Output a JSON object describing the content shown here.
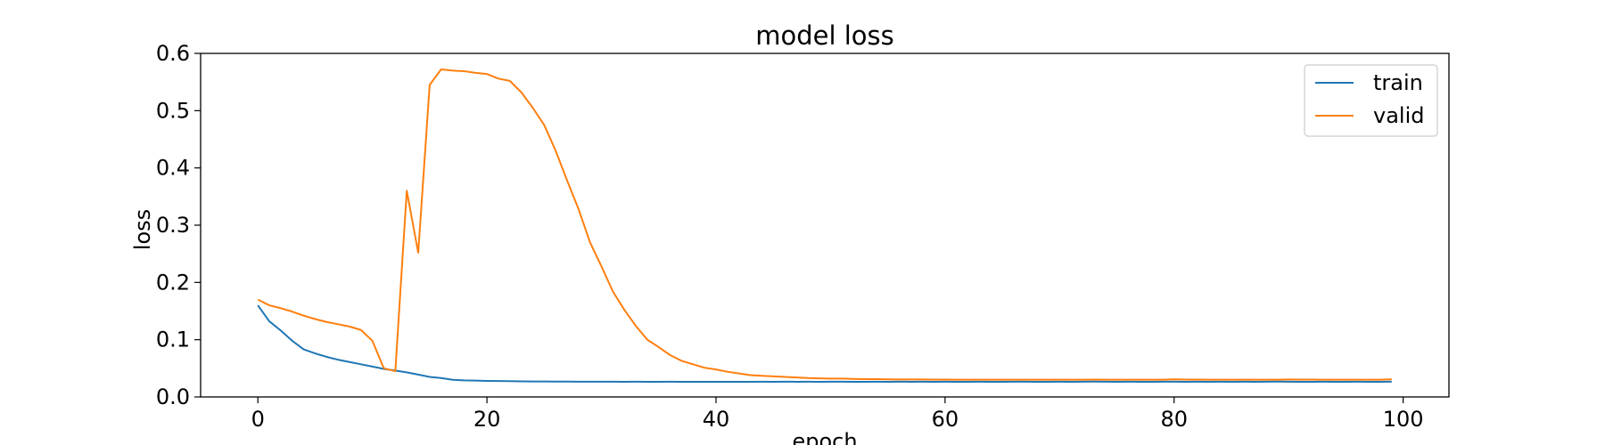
{
  "chart_data": {
    "type": "line",
    "title": "model loss",
    "xlabel": "epoch",
    "ylabel": "loss",
    "xlim": [
      -5,
      104
    ],
    "ylim": [
      0.0,
      0.6
    ],
    "xticks": [
      0,
      20,
      40,
      60,
      80,
      100
    ],
    "yticks": [
      0.0,
      0.1,
      0.2,
      0.3,
      0.4,
      0.5,
      0.6
    ],
    "xtick_labels": [
      "0",
      "20",
      "40",
      "60",
      "80",
      "100"
    ],
    "ytick_labels": [
      "0.0",
      "0.1",
      "0.2",
      "0.3",
      "0.4",
      "0.5",
      "0.6"
    ],
    "grid": false,
    "legend_position": "top-right",
    "series": [
      {
        "name": "train",
        "color": "#1f77b4",
        "x": [
          0,
          1,
          2,
          3,
          4,
          5,
          6,
          7,
          8,
          9,
          10,
          11,
          12,
          13,
          14,
          15,
          16,
          17,
          18,
          19,
          20,
          21,
          22,
          23,
          24,
          25,
          26,
          27,
          28,
          29,
          30,
          31,
          32,
          33,
          34,
          35,
          36,
          37,
          38,
          39,
          40,
          41,
          42,
          43,
          44,
          45,
          46,
          47,
          48,
          49,
          50,
          51,
          52,
          53,
          54,
          55,
          56,
          57,
          58,
          59,
          60,
          61,
          62,
          63,
          64,
          65,
          66,
          67,
          68,
          69,
          70,
          71,
          72,
          73,
          74,
          75,
          76,
          77,
          78,
          79,
          80,
          81,
          82,
          83,
          84,
          85,
          86,
          87,
          88,
          89,
          90,
          91,
          92,
          93,
          94,
          95,
          96,
          97,
          98,
          99
        ],
        "values": [
          0.16,
          0.132,
          0.116,
          0.098,
          0.083,
          0.076,
          0.07,
          0.065,
          0.061,
          0.057,
          0.053,
          0.049,
          0.046,
          0.043,
          0.039,
          0.035,
          0.033,
          0.03,
          0.029,
          0.0285,
          0.028,
          0.0278,
          0.0275,
          0.0272,
          0.027,
          0.027,
          0.0268,
          0.0268,
          0.0266,
          0.0266,
          0.0266,
          0.0266,
          0.0265,
          0.0266,
          0.0265,
          0.0265,
          0.0266,
          0.0265,
          0.0265,
          0.0265,
          0.0265,
          0.0265,
          0.0265,
          0.0265,
          0.0266,
          0.0265,
          0.0267,
          0.0265,
          0.0266,
          0.0265,
          0.0266,
          0.0266,
          0.0265,
          0.0265,
          0.0266,
          0.0265,
          0.0266,
          0.0265,
          0.0266,
          0.0265,
          0.0266,
          0.0265,
          0.0265,
          0.0266,
          0.0265,
          0.0265,
          0.0266,
          0.0266,
          0.0265,
          0.0265,
          0.0266,
          0.0265,
          0.0266,
          0.0268,
          0.0266,
          0.0265,
          0.0266,
          0.0265,
          0.0265,
          0.0266,
          0.0266,
          0.0265,
          0.0266,
          0.0265,
          0.0266,
          0.0265,
          0.0266,
          0.0265,
          0.0266,
          0.0268,
          0.0266,
          0.0265,
          0.0265,
          0.0266,
          0.0265,
          0.0265,
          0.0266,
          0.0265,
          0.0265,
          0.0266
        ]
      },
      {
        "name": "valid",
        "color": "#ff7f0e",
        "x": [
          0,
          1,
          2,
          3,
          4,
          5,
          6,
          7,
          8,
          9,
          10,
          11,
          12,
          13,
          14,
          15,
          16,
          17,
          18,
          19,
          20,
          21,
          22,
          23,
          24,
          25,
          26,
          27,
          28,
          29,
          30,
          31,
          32,
          33,
          34,
          35,
          36,
          37,
          38,
          39,
          40,
          41,
          42,
          43,
          44,
          45,
          46,
          47,
          48,
          49,
          50,
          51,
          52,
          53,
          54,
          55,
          56,
          57,
          58,
          59,
          60,
          61,
          62,
          63,
          64,
          65,
          66,
          67,
          68,
          69,
          70,
          71,
          72,
          73,
          74,
          75,
          76,
          77,
          78,
          79,
          80,
          81,
          82,
          83,
          84,
          85,
          86,
          87,
          88,
          89,
          90,
          91,
          92,
          93,
          94,
          95,
          96,
          97,
          98,
          99
        ],
        "values": [
          0.17,
          0.16,
          0.155,
          0.149,
          0.142,
          0.136,
          0.131,
          0.127,
          0.123,
          0.117,
          0.098,
          0.05,
          0.045,
          0.36,
          0.252,
          0.545,
          0.572,
          0.57,
          0.569,
          0.566,
          0.564,
          0.556,
          0.552,
          0.532,
          0.505,
          0.475,
          0.43,
          0.378,
          0.328,
          0.27,
          0.228,
          0.184,
          0.152,
          0.124,
          0.1,
          0.087,
          0.073,
          0.063,
          0.057,
          0.051,
          0.048,
          0.044,
          0.041,
          0.038,
          0.037,
          0.036,
          0.035,
          0.034,
          0.033,
          0.0325,
          0.032,
          0.032,
          0.0315,
          0.031,
          0.031,
          0.0308,
          0.0305,
          0.0305,
          0.0305,
          0.0303,
          0.0303,
          0.0302,
          0.0302,
          0.0302,
          0.0301,
          0.0302,
          0.0301,
          0.0302,
          0.0301,
          0.0301,
          0.0302,
          0.0301,
          0.0302,
          0.0304,
          0.0302,
          0.0301,
          0.0301,
          0.0302,
          0.0302,
          0.0302,
          0.0306,
          0.0304,
          0.0303,
          0.0302,
          0.0301,
          0.0301,
          0.0301,
          0.0301,
          0.0302,
          0.0302,
          0.0305,
          0.0304,
          0.0303,
          0.0302,
          0.0302,
          0.0302,
          0.0302,
          0.0302,
          0.0302,
          0.0306
        ]
      }
    ]
  }
}
